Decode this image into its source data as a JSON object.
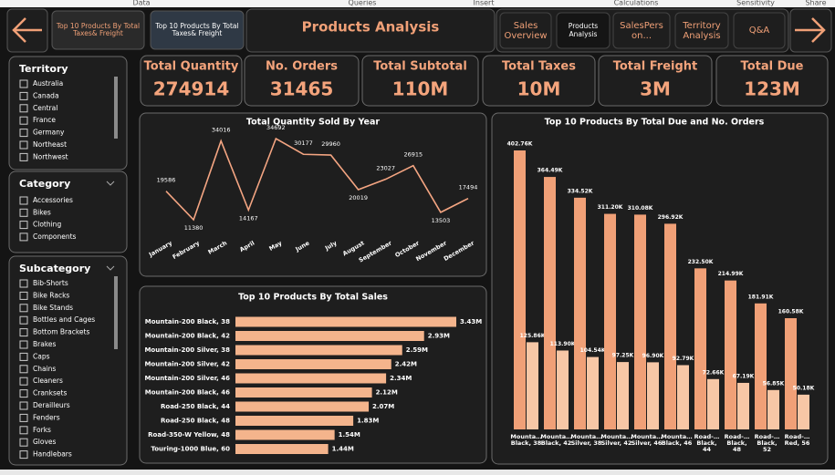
{
  "menu": [
    "Data",
    "Queries",
    "Insert",
    "Calculations",
    "Sensitivity",
    "Share"
  ],
  "nav": {
    "buttons": [
      "Top 10 Products By Total Taxes& Freight",
      "Top 10 Products By Total Taxes& Freight"
    ],
    "title": "Products Analysis",
    "pages": [
      "Sales Overview",
      "Products Analysis",
      "SalesPers on...",
      "Territory Analysis",
      "Q&A"
    ]
  },
  "cards": [
    {
      "label": "Total Quantity",
      "value": 274914
    },
    {
      "label": "No. Orders",
      "value": 31465
    },
    {
      "label": "Total Subtotal",
      "value": "110M"
    },
    {
      "label": "Total Taxes",
      "value": "10M"
    },
    {
      "label": "Total Freight",
      "value": "3M"
    },
    {
      "label": "Total Due",
      "value": "123M"
    }
  ],
  "slicers": [
    {
      "title": "Territory",
      "items": [
        "Australia",
        "Canada",
        "Central",
        "France",
        "Germany",
        "Northeast",
        "Northwest"
      ]
    },
    {
      "title": "Category",
      "items": [
        "Accessories",
        "Bikes",
        "Clothing",
        "Components"
      ]
    },
    {
      "title": "Subcategory",
      "items": [
        "Bib-Shorts",
        "Bike Racks",
        "Bike Stands",
        "Bottles and Cages",
        "Bottom Brackets",
        "Brakes",
        "Caps",
        "Chains",
        "Cleaners",
        "Cranksets",
        "Derailleurs",
        "Fenders",
        "Forks",
        "Gloves",
        "Handlebars"
      ]
    }
  ],
  "chart_data": [
    {
      "type": "line",
      "title": "Total Quantity Sold By Year",
      "color": "#f4a582",
      "categories": [
        "January",
        "February",
        "March",
        "April",
        "May",
        "June",
        "July",
        "August",
        "September",
        "October",
        "November",
        "December"
      ],
      "values": [
        19586,
        11380,
        34016,
        14167,
        34692,
        30177,
        29960,
        20019,
        23027,
        26915,
        13503,
        17494
      ]
    },
    {
      "type": "hbar",
      "title": "Top 10 Products By Total Sales",
      "color": "#f4b48c",
      "categories": [
        "Mountain-200 Black, 38",
        "Mountain-200 Black, 42",
        "Mountain-200 Silver, 38",
        "Mountain-200 Silver, 42",
        "Mountain-200 Silver, 46",
        "Mountain-200 Black, 46",
        "Road-250 Black, 44",
        "Road-250 Black, 48",
        "Road-350-W Yellow, 48",
        "Touring-1000 Blue, 60"
      ],
      "values": [
        3.43,
        2.93,
        2.59,
        2.42,
        2.34,
        2.12,
        2.07,
        1.83,
        1.54,
        1.44
      ],
      "value_labels": [
        "3.43M",
        "2.93M",
        "2.59M",
        "2.42M",
        "2.34M",
        "2.12M",
        "2.07M",
        "1.83M",
        "1.54M",
        "1.44M"
      ]
    },
    {
      "type": "column",
      "title": "Top 10 Products By Total Due and No. Orders",
      "categories": [
        "Mounta… Black, 38",
        "Mounta… Black, 42",
        "Mounta… Silver, 38",
        "Mounta… Silver, 42",
        "Mounta… Silver, 46",
        "Mounta… Black, 46",
        "Road-… Black, 44",
        "Road-… Black, 48",
        "Road-… Black, 52",
        "Road-… Red, 56"
      ],
      "series": [
        {
          "color": "#f0a077",
          "values": [
            402.76,
            364.49,
            334.52,
            311.2,
            310.08,
            296.92,
            232.5,
            214.99,
            181.91,
            160.58
          ],
          "value_labels": [
            "402.76K",
            "364.49K",
            "334.52K",
            "311.20K",
            "310.08K",
            "296.92K",
            "232.50K",
            "214.99K",
            "181.91K",
            "160.58K"
          ]
        },
        {
          "color": "#f7c7a6",
          "values": [
            125.86,
            113.9,
            104.54,
            97.25,
            96.9,
            92.79,
            72.66,
            67.19,
            56.85,
            50.18
          ],
          "value_labels": [
            "125.86K",
            "113.90K",
            "104.54K",
            "97.25K",
            "96.90K",
            "92.79K",
            "72.66K",
            "67.19K",
            "56.85K",
            "50.18K"
          ]
        }
      ]
    }
  ]
}
